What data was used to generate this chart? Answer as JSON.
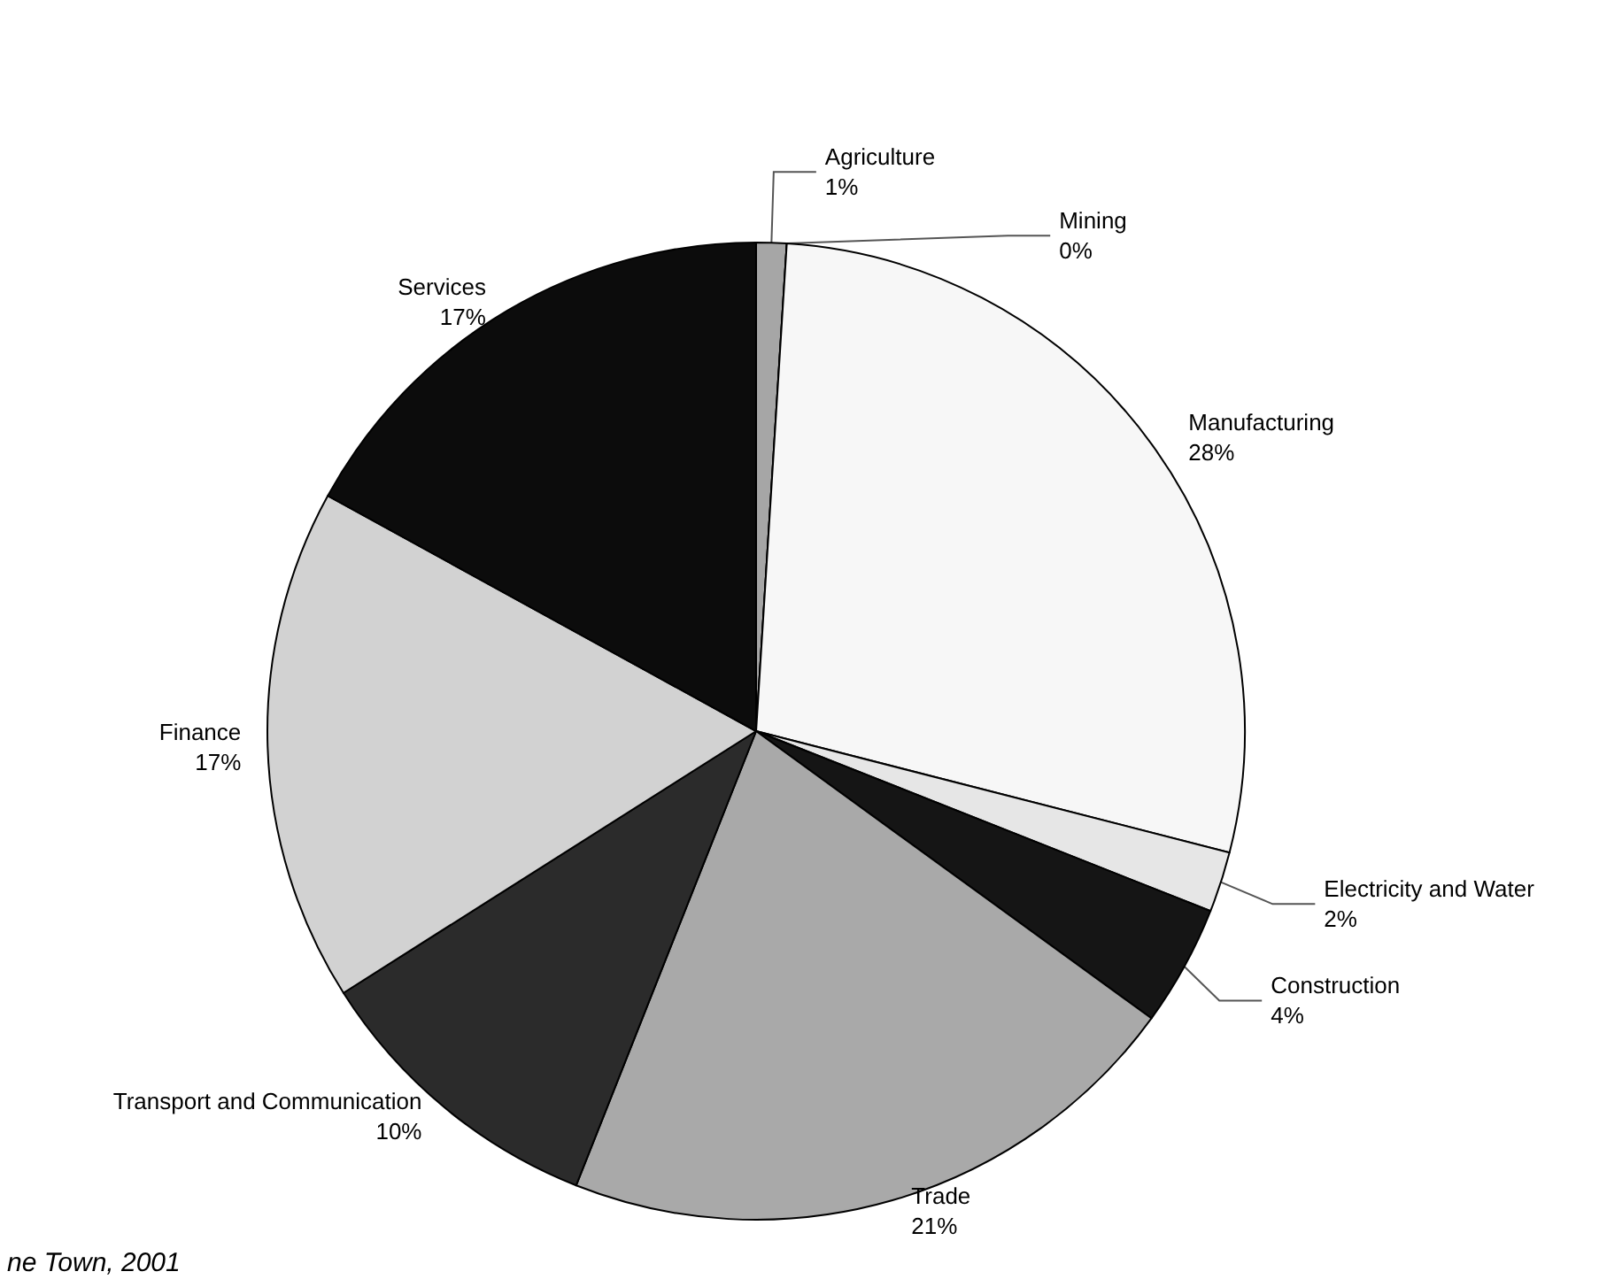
{
  "chart_data": {
    "type": "pie",
    "categories": [
      "Agriculture",
      "Mining",
      "Manufacturing",
      "Electricity and Water",
      "Construction",
      "Trade",
      "Transport and Communication",
      "Finance",
      "Services"
    ],
    "values": [
      1,
      0,
      28,
      2,
      4,
      21,
      10,
      17,
      17
    ],
    "value_labels": [
      "1%",
      "0%",
      "28%",
      "2%",
      "4%",
      "21%",
      "10%",
      "17%",
      "17%"
    ],
    "colors": [
      "#a6a6a6",
      "#262626",
      "#f7f7f7",
      "#e6e6e6",
      "#151515",
      "#a9a9a9",
      "#2b2b2b",
      "#d2d2d2",
      "#0c0c0c"
    ],
    "legend": false,
    "annotations": [
      "ne Town, 2001"
    ]
  }
}
